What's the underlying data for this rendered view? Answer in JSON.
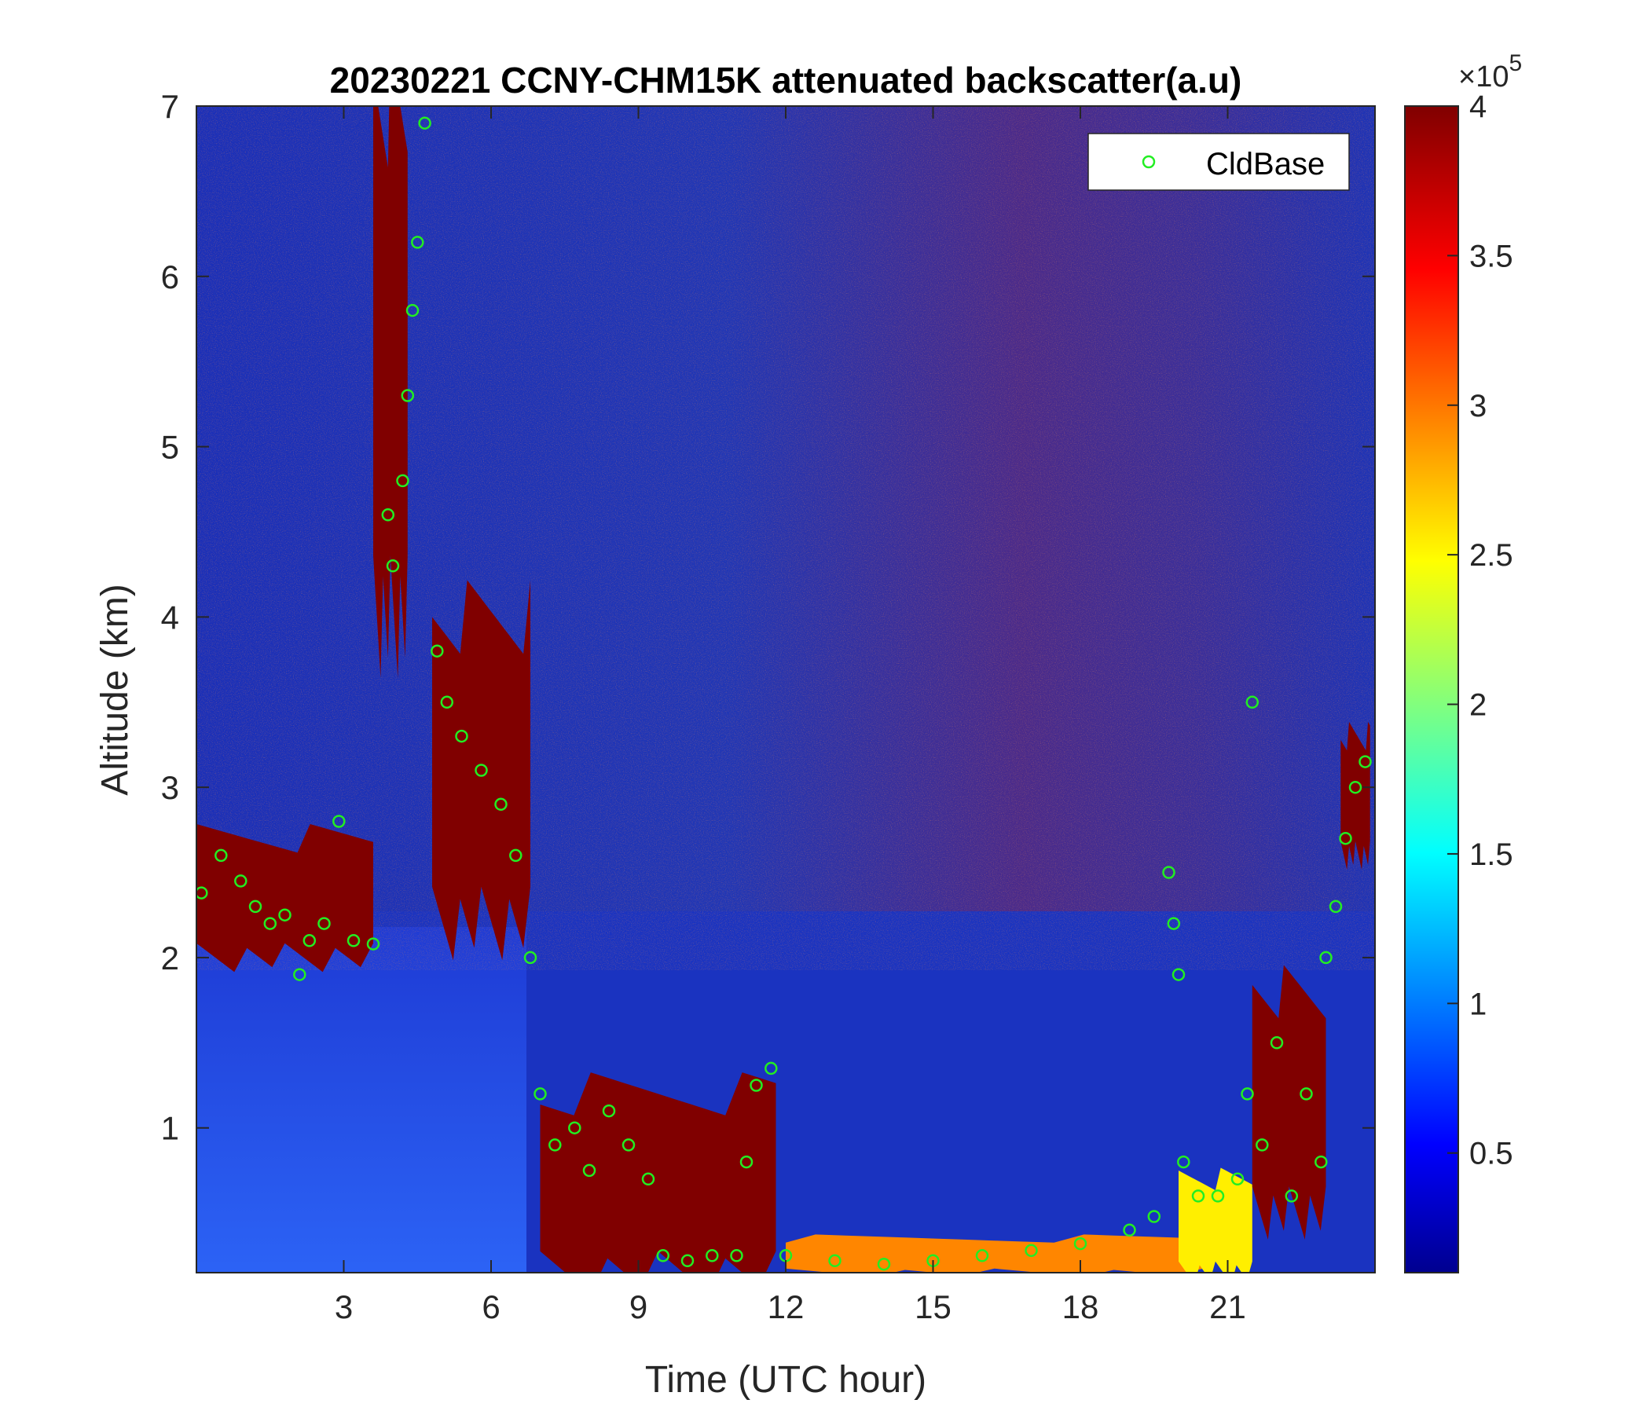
{
  "chart_data": {
    "type": "heatmap",
    "title": "20230221 CCNY-CHM15K attenuated backscatter(a.u)",
    "xlabel": "Time (UTC hour)",
    "ylabel": "Altitude (km)",
    "xlim": [
      0,
      24
    ],
    "ylim": [
      0.15,
      7
    ],
    "xticks": [
      3,
      6,
      9,
      12,
      15,
      18,
      21
    ],
    "yticks": [
      1,
      2,
      3,
      4,
      5,
      6,
      7
    ],
    "colorbar": {
      "colormap": "jet",
      "range": [
        0.1,
        4
      ],
      "ticks": [
        0.5,
        1,
        1.5,
        2,
        2.5,
        3,
        3.5,
        4
      ],
      "exponent_label": "×10",
      "exponent": "5"
    },
    "legend": {
      "position": "top-right",
      "label": "CldBase",
      "marker_color": "#22ee22"
    },
    "layers": [
      {
        "t0": 0.0,
        "t1": 3.6,
        "z0": 2.0,
        "z1": 2.7,
        "value": 4.0
      },
      {
        "t0": 3.6,
        "t1": 4.3,
        "z0": 4.0,
        "z1": 7.0,
        "value": 4.0
      },
      {
        "t0": 4.8,
        "t1": 6.8,
        "z0": 2.2,
        "z1": 4.0,
        "value": 4.0
      },
      {
        "t0": 7.0,
        "t1": 11.8,
        "z0": 0.15,
        "z1": 1.2,
        "value": 4.0
      },
      {
        "t0": 12.0,
        "t1": 20.5,
        "z0": 0.15,
        "z1": 0.35,
        "value": 3.0
      },
      {
        "t0": 20.0,
        "t1": 21.5,
        "z0": 0.15,
        "z1": 0.7,
        "value": 2.6
      },
      {
        "t0": 21.5,
        "t1": 23.0,
        "z0": 0.5,
        "z1": 1.8,
        "value": 4.0
      },
      {
        "t0": 23.3,
        "t1": 23.9,
        "z0": 2.6,
        "z1": 3.3,
        "value": 4.0
      }
    ],
    "cldbase": [
      {
        "t": 0.1,
        "z": 2.38
      },
      {
        "t": 0.5,
        "z": 2.6
      },
      {
        "t": 0.9,
        "z": 2.45
      },
      {
        "t": 1.2,
        "z": 2.3
      },
      {
        "t": 1.5,
        "z": 2.2
      },
      {
        "t": 1.8,
        "z": 2.25
      },
      {
        "t": 2.1,
        "z": 1.9
      },
      {
        "t": 2.3,
        "z": 2.1
      },
      {
        "t": 2.6,
        "z": 2.2
      },
      {
        "t": 2.9,
        "z": 2.8
      },
      {
        "t": 3.2,
        "z": 2.1
      },
      {
        "t": 3.6,
        "z": 2.08
      },
      {
        "t": 3.9,
        "z": 4.6
      },
      {
        "t": 4.0,
        "z": 4.3
      },
      {
        "t": 4.2,
        "z": 4.8
      },
      {
        "t": 4.3,
        "z": 5.3
      },
      {
        "t": 4.4,
        "z": 5.8
      },
      {
        "t": 4.5,
        "z": 6.2
      },
      {
        "t": 4.65,
        "z": 6.9
      },
      {
        "t": 4.9,
        "z": 3.8
      },
      {
        "t": 5.1,
        "z": 3.5
      },
      {
        "t": 5.4,
        "z": 3.3
      },
      {
        "t": 5.8,
        "z": 3.1
      },
      {
        "t": 6.2,
        "z": 2.9
      },
      {
        "t": 6.5,
        "z": 2.6
      },
      {
        "t": 6.8,
        "z": 2.0
      },
      {
        "t": 7.0,
        "z": 1.2
      },
      {
        "t": 7.3,
        "z": 0.9
      },
      {
        "t": 7.7,
        "z": 1.0
      },
      {
        "t": 8.0,
        "z": 0.75
      },
      {
        "t": 8.4,
        "z": 1.1
      },
      {
        "t": 8.8,
        "z": 0.9
      },
      {
        "t": 9.2,
        "z": 0.7
      },
      {
        "t": 9.5,
        "z": 0.25
      },
      {
        "t": 10.0,
        "z": 0.22
      },
      {
        "t": 10.5,
        "z": 0.25
      },
      {
        "t": 11.0,
        "z": 0.25
      },
      {
        "t": 11.2,
        "z": 0.8
      },
      {
        "t": 11.4,
        "z": 1.25
      },
      {
        "t": 11.7,
        "z": 1.35
      },
      {
        "t": 12.0,
        "z": 0.25
      },
      {
        "t": 13.0,
        "z": 0.22
      },
      {
        "t": 14.0,
        "z": 0.2
      },
      {
        "t": 15.0,
        "z": 0.22
      },
      {
        "t": 16.0,
        "z": 0.25
      },
      {
        "t": 17.0,
        "z": 0.28
      },
      {
        "t": 18.0,
        "z": 0.32
      },
      {
        "t": 19.0,
        "z": 0.4
      },
      {
        "t": 19.5,
        "z": 0.48
      },
      {
        "t": 19.8,
        "z": 2.5
      },
      {
        "t": 19.9,
        "z": 2.2
      },
      {
        "t": 20.0,
        "z": 1.9
      },
      {
        "t": 20.1,
        "z": 0.8
      },
      {
        "t": 20.4,
        "z": 0.6
      },
      {
        "t": 20.8,
        "z": 0.6
      },
      {
        "t": 21.2,
        "z": 0.7
      },
      {
        "t": 21.4,
        "z": 1.2
      },
      {
        "t": 21.5,
        "z": 3.5
      },
      {
        "t": 21.7,
        "z": 0.9
      },
      {
        "t": 22.0,
        "z": 1.5
      },
      {
        "t": 22.3,
        "z": 0.6
      },
      {
        "t": 22.6,
        "z": 1.2
      },
      {
        "t": 22.9,
        "z": 0.8
      },
      {
        "t": 23.0,
        "z": 2.0
      },
      {
        "t": 23.2,
        "z": 2.3
      },
      {
        "t": 23.4,
        "z": 2.7
      },
      {
        "t": 23.6,
        "z": 3.0
      },
      {
        "t": 23.8,
        "z": 3.15
      }
    ]
  }
}
